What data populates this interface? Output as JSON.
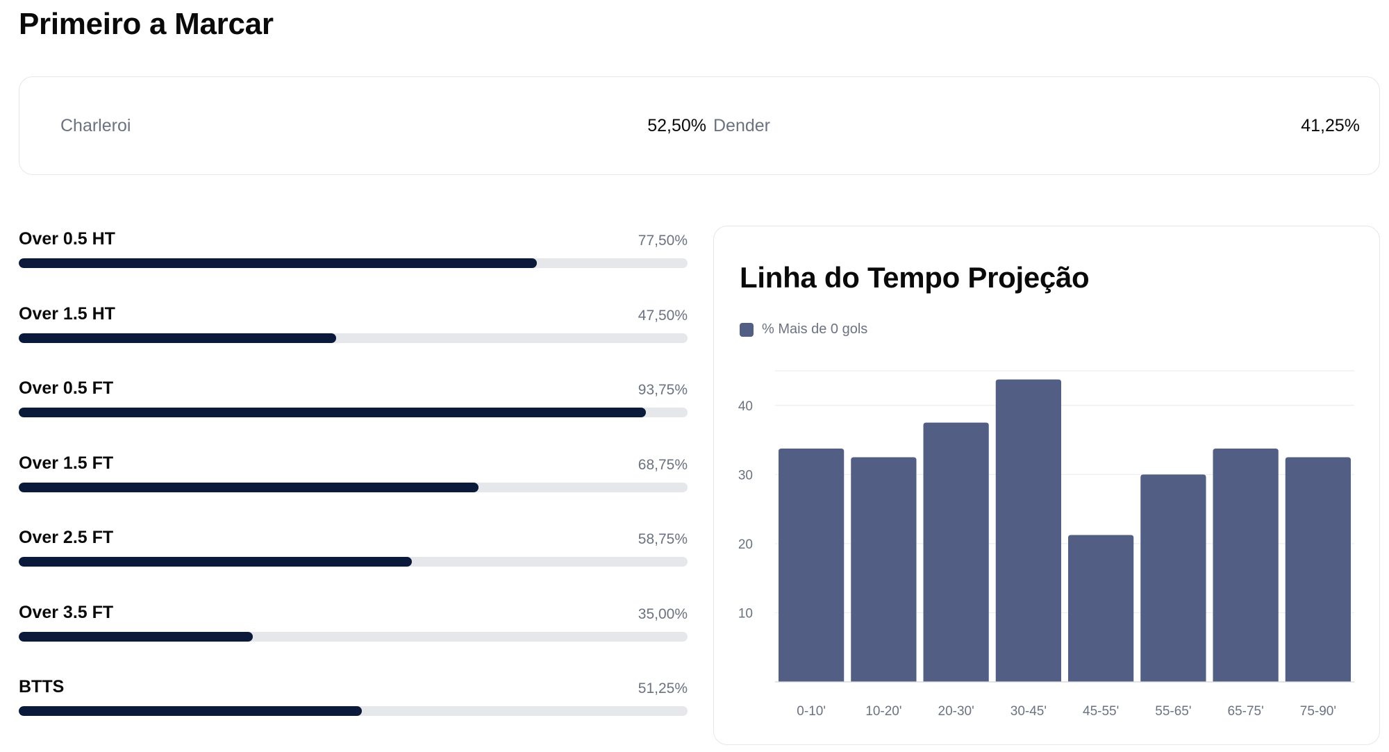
{
  "header": {
    "title": "Primeiro a Marcar"
  },
  "first_to_score": [
    {
      "team": "Charleroi",
      "value": "52,50%"
    },
    {
      "team": "Dender",
      "value": "41,25%"
    }
  ],
  "stats": [
    {
      "label": "Over 0.5 HT",
      "value": "77,50%",
      "percent": 77.5
    },
    {
      "label": "Over 1.5 HT",
      "value": "47,50%",
      "percent": 47.5
    },
    {
      "label": "Over 0.5 FT",
      "value": "93,75%",
      "percent": 93.75
    },
    {
      "label": "Over 1.5 FT",
      "value": "68,75%",
      "percent": 68.75
    },
    {
      "label": "Over 2.5 FT",
      "value": "58,75%",
      "percent": 58.75
    },
    {
      "label": "Over 3.5 FT",
      "value": "35,00%",
      "percent": 35.0
    },
    {
      "label": "BTTS",
      "value": "51,25%",
      "percent": 51.25
    }
  ],
  "colors": {
    "bar_fill": "#0b1a3b",
    "bar_track": "#e5e7eb",
    "chart_bar": "#525e84"
  },
  "chart_data": {
    "type": "bar",
    "title": "Linha do Tempo Projeção",
    "legend_position": "top-left",
    "grid": true,
    "categories": [
      "0-10'",
      "10-20'",
      "20-30'",
      "30-45'",
      "45-55'",
      "55-65'",
      "65-75'",
      "75-90'"
    ],
    "series": [
      {
        "name": "% Mais de 0 gols",
        "values": [
          33.75,
          32.5,
          37.5,
          43.75,
          21.25,
          30,
          33.75,
          32.5
        ]
      }
    ],
    "yticks": [
      10,
      20,
      30,
      40
    ],
    "ylim": [
      0,
      45
    ]
  }
}
